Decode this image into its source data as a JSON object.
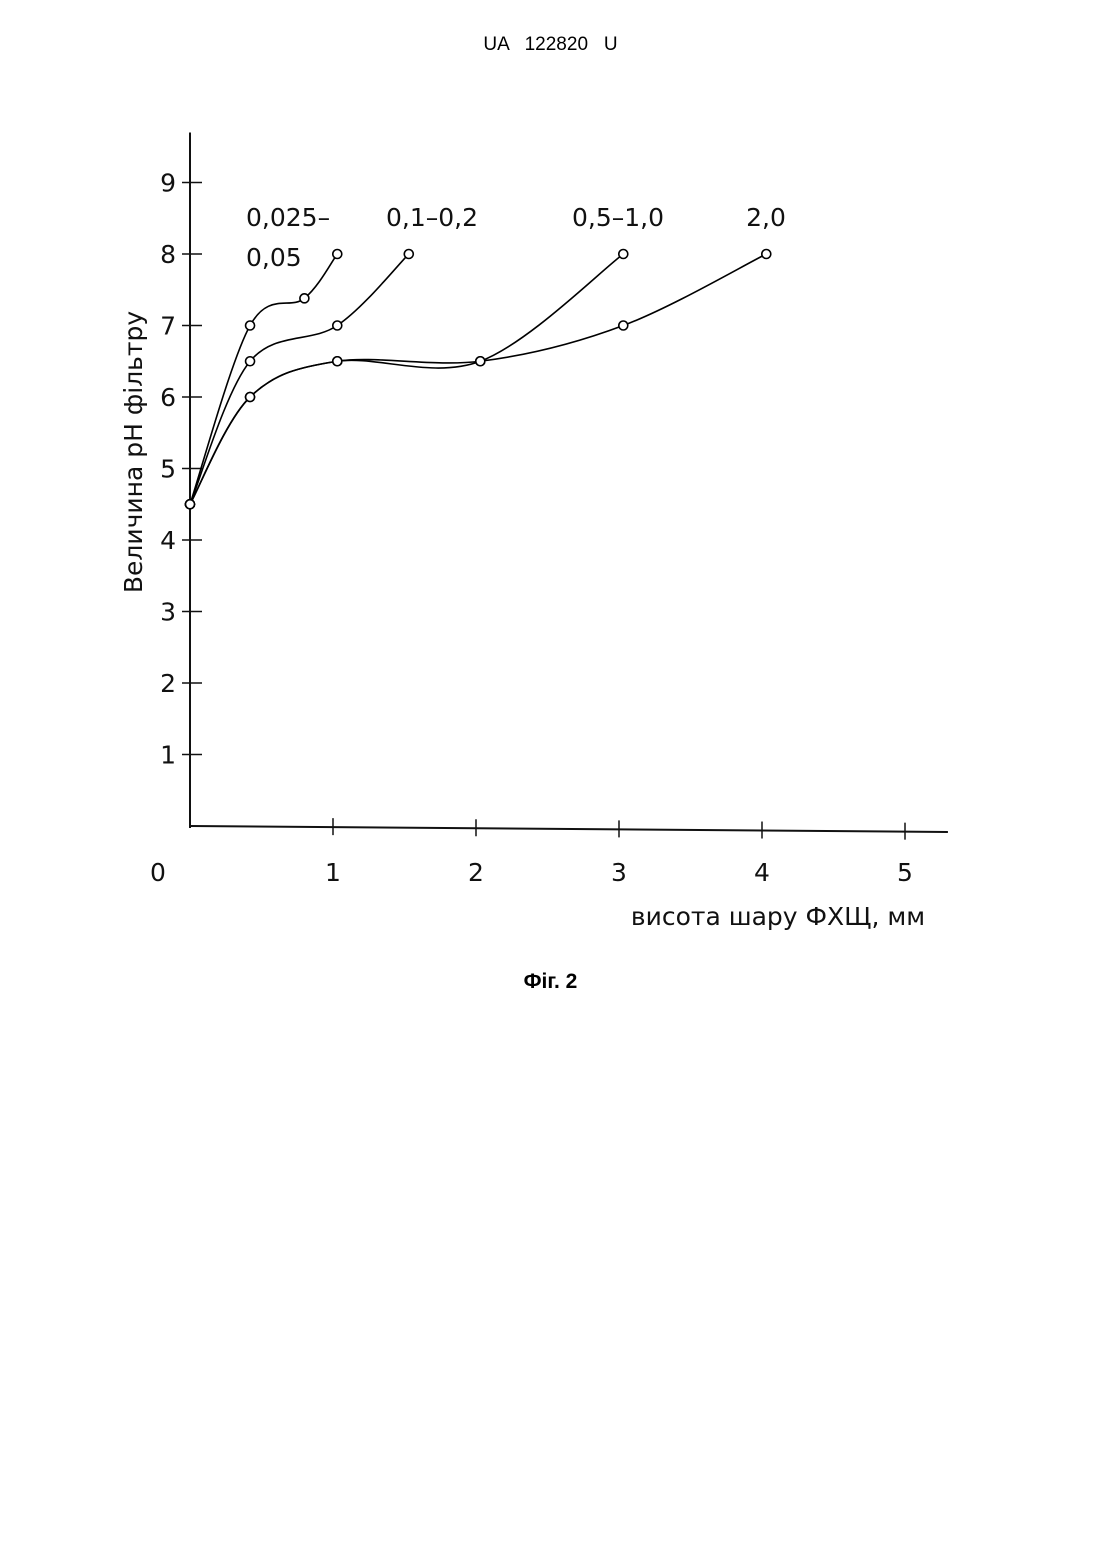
{
  "header": "UA   122820   U",
  "caption": "Фіг. 2",
  "chart_data": {
    "type": "line",
    "y_label": "Величина pH фільтру",
    "x_label": "висота шару ФХЩ, мм",
    "xlim": [
      0,
      5.3
    ],
    "ylim": [
      0,
      9.7
    ],
    "xticks": [
      0,
      1,
      2,
      3,
      4,
      5
    ],
    "yticks": [
      1,
      2,
      3,
      4,
      5,
      6,
      7,
      8,
      9
    ],
    "series": [
      {
        "name": "0,025–0,05",
        "color": "#000000",
        "x": [
          0,
          0.42,
          0.8,
          1.03
        ],
        "values": [
          4.5,
          7.0,
          7.38,
          8.0
        ]
      },
      {
        "name": "0,1–0,2",
        "color": "#000000",
        "x": [
          0,
          0.42,
          1.03,
          1.53
        ],
        "values": [
          4.5,
          6.5,
          7.0,
          8.0
        ]
      },
      {
        "name": "0,5–1,0",
        "color": "#000000",
        "x": [
          0,
          0.42,
          1.03,
          2.03,
          3.03
        ],
        "values": [
          4.5,
          6.0,
          6.5,
          6.5,
          8.0
        ]
      },
      {
        "name": "2,0",
        "color": "#000000",
        "x": [
          0,
          0.42,
          1.03,
          2.03,
          3.03,
          4.03
        ],
        "values": [
          4.5,
          6.0,
          6.5,
          6.5,
          7.0,
          8.0
        ]
      }
    ]
  }
}
